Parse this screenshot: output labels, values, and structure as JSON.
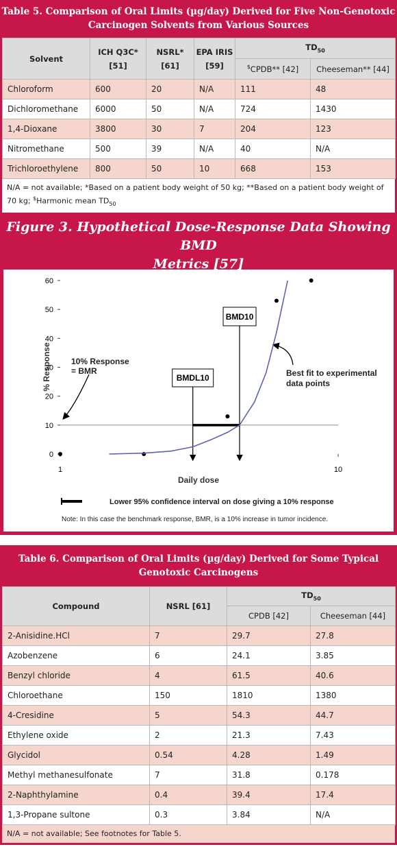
{
  "table5": {
    "title": [
      "Table 5. Comparison of Oral Limits (µg/day) Derived for Five Non-Genotoxic",
      "Carcinogen Solvents from Various Sources"
    ],
    "columns": [
      [
        "Solvent"
      ],
      [
        "ICH Q3C*",
        "[51]"
      ],
      [
        "NSRL*",
        "[61]"
      ],
      [
        "EPA IRIS",
        "[59]"
      ]
    ],
    "group": {
      "text": "TD",
      "sub": "50"
    },
    "subcolumns": [
      {
        "sup": "$",
        "text": "CPDB** [42]"
      },
      {
        "text": "Cheeseman** [44]"
      }
    ],
    "rows": [
      [
        "Chloroform",
        "600",
        "20",
        "N/A",
        "111",
        "48"
      ],
      [
        "Dichloromethane",
        "6000",
        "50",
        "N/A",
        "724",
        "1430"
      ],
      [
        "1,4-Dioxane",
        "3800",
        "30",
        "7",
        "204",
        "123"
      ],
      [
        "Nitromethane",
        "500",
        "39",
        "N/A",
        "40",
        "N/A"
      ],
      [
        "Trichloroethylene",
        "800",
        "50",
        "10",
        "668",
        "153"
      ]
    ],
    "footnote": [
      {
        "text": "N/A = not available; *Based on a patient body weight of 50 kg; **Based on a patient body weight of 70 kg; "
      },
      {
        "sup": "$"
      },
      {
        "text": "Harmonic mean TD"
      },
      {
        "sub": "50"
      }
    ]
  },
  "figure_title": [
    "Figure 3. Hypothetical Dose-Response Data Showing BMD",
    "Metrics [57]"
  ],
  "chart_data": {
    "type": "scatter",
    "xlabel": "Daily dose",
    "ylabel": "% Response",
    "xscale": "log",
    "xlim": [
      1,
      10
    ],
    "xticks": [
      1,
      10
    ],
    "ylim": [
      0,
      60
    ],
    "yticks": [
      0,
      10,
      20,
      30,
      40,
      50,
      60
    ],
    "series": [
      {
        "type": "scatter",
        "color": "#000000",
        "x": [
          1,
          2,
          4,
          6,
          8
        ],
        "values": [
          0,
          0,
          13,
          53,
          60
        ]
      },
      {
        "type": "line",
        "color": "#5b63b5",
        "x": [
          1.5,
          2,
          2.5,
          3,
          3.5,
          4,
          4.42,
          5,
          5.5,
          6,
          6.58
        ],
        "values": [
          0,
          0.3,
          1,
          2.5,
          5,
          7.5,
          10,
          18,
          28,
          42,
          60
        ]
      }
    ],
    "bmr": 10,
    "bmdl": 3.0,
    "bmd": 4.42,
    "annotations": {
      "bmr": [
        "10% Response",
        "= BMR"
      ],
      "bmd": "BMD10",
      "bmdl": "BMDL10",
      "fit": [
        "Best fit to experimental",
        "data points"
      ]
    },
    "legend": "Lower 95% confidence interval on dose giving a 10% response",
    "note": "Note: In this case the benchmark response, BMR, is a 10% increase in tumor incidence."
  },
  "table6": {
    "title": [
      "Table 6. Comparison of Oral Limits (µg/day) Derived for Some Typical",
      "Genotoxic Carcinogens"
    ],
    "columns": [
      [
        "Compound"
      ],
      [
        "NSRL [61]"
      ]
    ],
    "group": {
      "text": "TD",
      "sub": "50"
    },
    "subcolumns": [
      {
        "text": "CPDB [42]"
      },
      {
        "text": "Cheeseman [44]"
      }
    ],
    "rows": [
      [
        "2-Anisidine.HCl",
        "7",
        "29.7",
        "27.8"
      ],
      [
        "Azobenzene",
        "6",
        "24.1",
        "3.85"
      ],
      [
        "Benzyl chloride",
        "4",
        "61.5",
        "40.6"
      ],
      [
        "Chloroethane",
        "150",
        "1810",
        "1380"
      ],
      [
        "4-Cresidine",
        "5",
        "54.3",
        "44.7"
      ],
      [
        "Ethylene oxide",
        "2",
        "21.3",
        "7.43"
      ],
      [
        "Glycidol",
        "0.54",
        "4.28",
        "1.49"
      ],
      [
        "Methyl methanesulfonate",
        "7",
        "31.8",
        "0.178"
      ],
      [
        "2-Naphthylamine",
        "0.4",
        "39.4",
        "17.4"
      ],
      [
        "1,3-Propane sultone",
        "0.3",
        "3.84",
        "N/A"
      ]
    ],
    "footnote": [
      {
        "text": "N/A = not available; See footnotes for Table 5."
      }
    ]
  }
}
